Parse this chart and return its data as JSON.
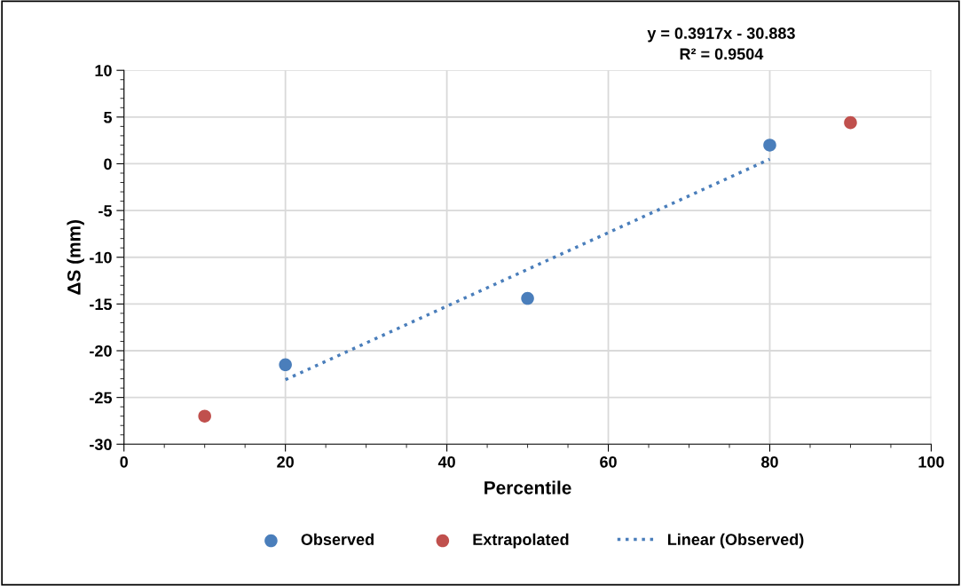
{
  "chart_data": {
    "type": "scatter",
    "xlabel": "Percentile",
    "ylabel": "ΔS (mm)",
    "series": [
      {
        "name": "Observed",
        "color": "#4a7ebb",
        "x": [
          20,
          50,
          80
        ],
        "values": [
          -21.5,
          -14.4,
          2.0
        ],
        "marker": "circle"
      },
      {
        "name": "Extrapolated",
        "color": "#c0504d",
        "x": [
          10,
          90
        ],
        "values": [
          -27.0,
          4.4
        ],
        "marker": "circle"
      },
      {
        "name": "Linear (Observed)",
        "type": "line",
        "color": "#4a7ebb",
        "x": [
          20,
          80
        ],
        "values": [
          -23.1,
          0.5
        ],
        "marker": "none",
        "line_style": "dotted"
      }
    ],
    "annotations": [
      "y = 0.3917x - 30.883",
      "R² = 0.9504"
    ],
    "xlim": [
      0,
      100
    ],
    "xticks": [
      0,
      20,
      40,
      60,
      80,
      100
    ],
    "ylim": [
      -30,
      10
    ],
    "yticks": [
      -30,
      -25,
      -20,
      -15,
      -10,
      -5,
      0,
      5,
      10
    ],
    "grid": true,
    "legend": "bottom"
  }
}
